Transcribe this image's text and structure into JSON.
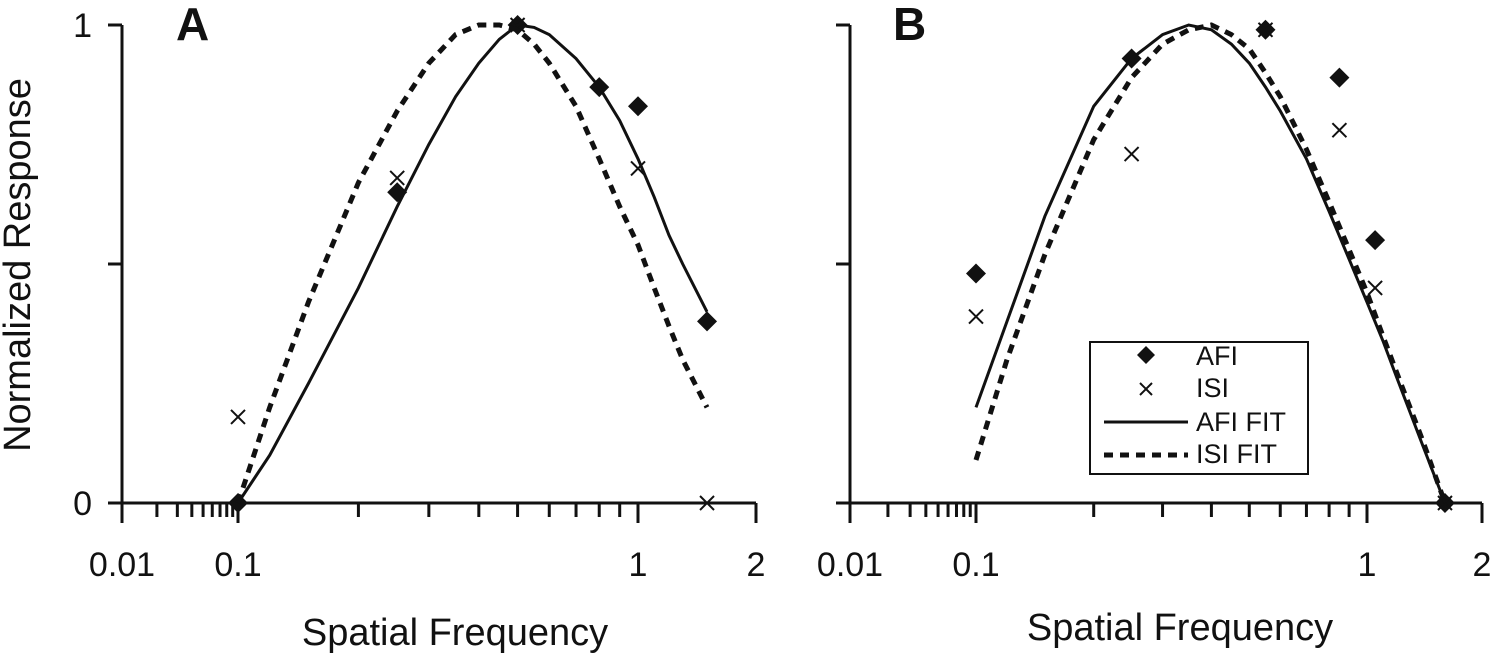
{
  "chart_data": [
    {
      "panel": "A",
      "type": "line",
      "xscale": "log",
      "xlim": [
        0.01,
        2
      ],
      "ylim": [
        0,
        1
      ],
      "xlabel": "Spatial Frequency",
      "ylabel": "Normalized Response",
      "xticklabels": [
        "0.01",
        "0.1",
        "1",
        "2"
      ],
      "xtickvalues": [
        0.01,
        0.1,
        1,
        2
      ],
      "yticklabels": [
        "0",
        "1"
      ],
      "ytickvalues": [
        0,
        1
      ],
      "grid": false,
      "series": [
        {
          "name": "AFI",
          "kind": "scatter",
          "marker": "diamond",
          "x": [
            0.1,
            0.25,
            0.5,
            0.8,
            1.0,
            1.5
          ],
          "y": [
            0.0,
            0.65,
            1.0,
            0.87,
            0.83,
            0.38
          ]
        },
        {
          "name": "ISI",
          "kind": "scatter",
          "marker": "x",
          "x": [
            0.1,
            0.25,
            0.5,
            1.0,
            1.5
          ],
          "y": [
            0.18,
            0.68,
            1.0,
            0.7,
            0.0
          ]
        },
        {
          "name": "AFI FIT",
          "kind": "line",
          "dash": "solid",
          "x": [
            0.1,
            0.12,
            0.15,
            0.2,
            0.25,
            0.3,
            0.35,
            0.4,
            0.45,
            0.5,
            0.55,
            0.6,
            0.7,
            0.8,
            0.9,
            1.0,
            1.1,
            1.2,
            1.3,
            1.5
          ],
          "y": [
            0.0,
            0.1,
            0.25,
            0.45,
            0.62,
            0.75,
            0.85,
            0.92,
            0.97,
            1.0,
            0.995,
            0.98,
            0.93,
            0.87,
            0.8,
            0.72,
            0.64,
            0.56,
            0.5,
            0.4
          ]
        },
        {
          "name": "ISI FIT",
          "kind": "line",
          "dash": "dashed",
          "x": [
            0.1,
            0.12,
            0.15,
            0.2,
            0.25,
            0.3,
            0.35,
            0.4,
            0.45,
            0.5,
            0.55,
            0.6,
            0.7,
            0.8,
            0.9,
            1.0,
            1.1,
            1.2,
            1.3,
            1.5
          ],
          "y": [
            0.0,
            0.2,
            0.42,
            0.67,
            0.82,
            0.92,
            0.98,
            1.0,
            1.0,
            0.99,
            0.96,
            0.92,
            0.83,
            0.72,
            0.62,
            0.54,
            0.45,
            0.37,
            0.3,
            0.2
          ]
        }
      ]
    },
    {
      "panel": "B",
      "type": "line",
      "xscale": "log",
      "xlim": [
        0.01,
        2
      ],
      "ylim": [
        0,
        1
      ],
      "xlabel": "Spatial Frequency",
      "ylabel": "",
      "xticklabels": [
        "0.01",
        "0.1",
        "1",
        "2"
      ],
      "xtickvalues": [
        0.01,
        0.1,
        1,
        2
      ],
      "yticklabels": [],
      "ytickvalues": [],
      "grid": false,
      "legend_position": "lower-right",
      "series": [
        {
          "name": "AFI",
          "kind": "scatter",
          "marker": "diamond",
          "x": [
            0.1,
            0.25,
            0.55,
            0.85,
            1.05,
            1.6
          ],
          "y": [
            0.48,
            0.93,
            0.99,
            0.89,
            0.55,
            0.0
          ]
        },
        {
          "name": "ISI",
          "kind": "scatter",
          "marker": "x",
          "x": [
            0.1,
            0.25,
            0.55,
            0.85,
            1.05,
            1.6
          ],
          "y": [
            0.39,
            0.73,
            0.99,
            0.78,
            0.45,
            0.0
          ]
        },
        {
          "name": "AFI FIT",
          "kind": "line",
          "dash": "solid",
          "x": [
            0.1,
            0.12,
            0.15,
            0.2,
            0.25,
            0.3,
            0.35,
            0.4,
            0.45,
            0.5,
            0.55,
            0.6,
            0.7,
            0.8,
            0.9,
            1.0,
            1.1,
            1.2,
            1.4,
            1.6
          ],
          "y": [
            0.2,
            0.38,
            0.6,
            0.83,
            0.93,
            0.98,
            1.0,
            0.99,
            0.96,
            0.92,
            0.87,
            0.82,
            0.72,
            0.61,
            0.51,
            0.42,
            0.34,
            0.26,
            0.12,
            0.0
          ]
        },
        {
          "name": "ISI FIT",
          "kind": "line",
          "dash": "dashed",
          "x": [
            0.1,
            0.12,
            0.15,
            0.2,
            0.25,
            0.3,
            0.35,
            0.4,
            0.45,
            0.5,
            0.55,
            0.6,
            0.7,
            0.8,
            0.9,
            1.0,
            1.1,
            1.2,
            1.4,
            1.6
          ],
          "y": [
            0.09,
            0.3,
            0.52,
            0.76,
            0.89,
            0.96,
            0.99,
            1.0,
            0.98,
            0.95,
            0.9,
            0.85,
            0.74,
            0.63,
            0.53,
            0.44,
            0.35,
            0.27,
            0.13,
            0.0
          ]
        }
      ]
    }
  ]
}
